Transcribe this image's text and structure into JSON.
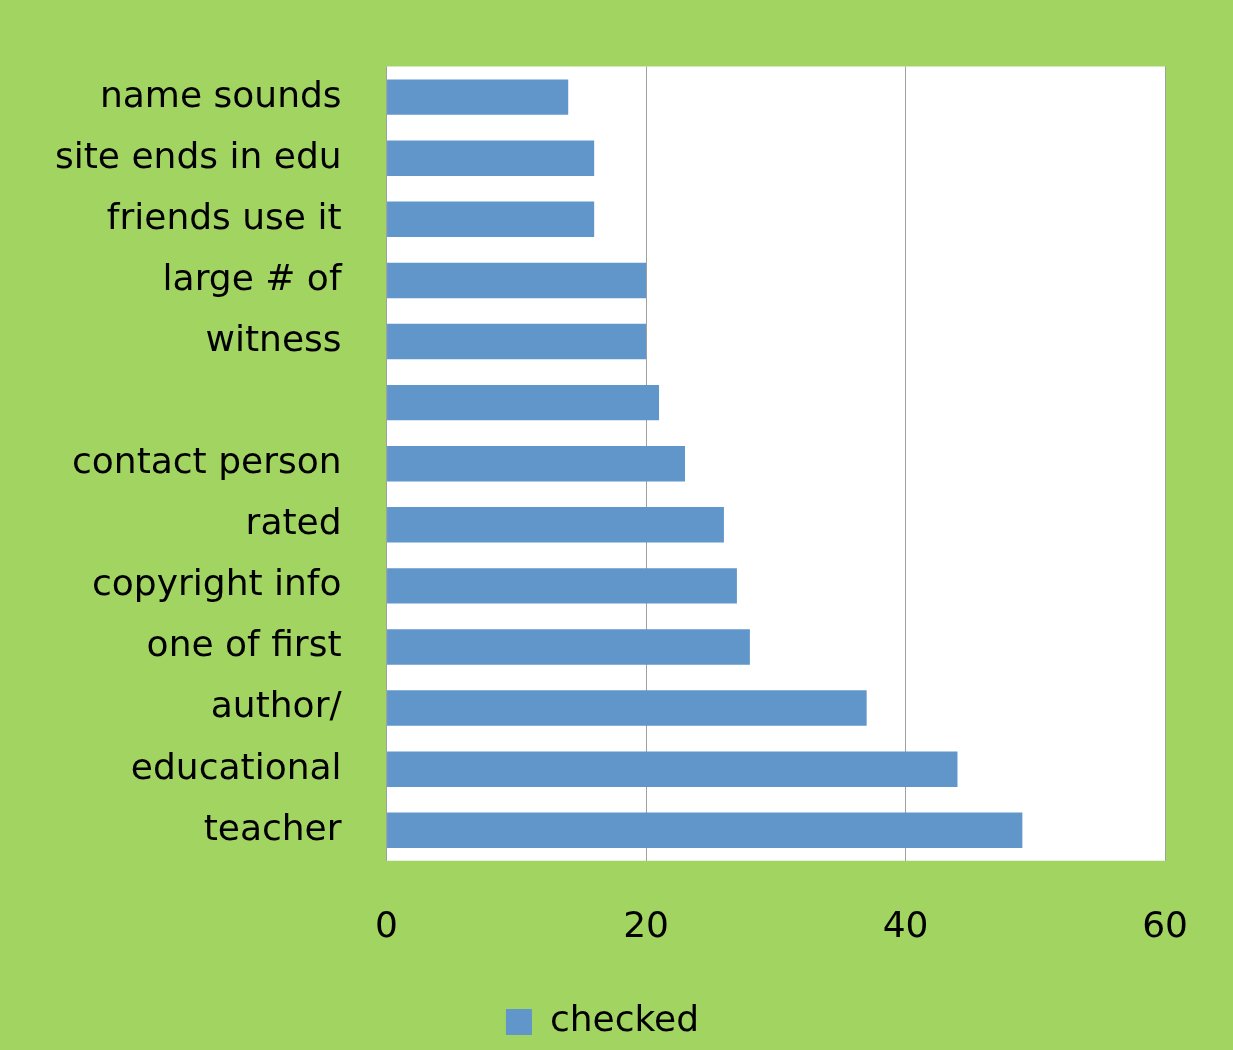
{
  "chart_data": {
    "type": "bar",
    "orientation": "horizontal",
    "categories": [
      "name sounds",
      "site ends in edu",
      "friends use it",
      "large # of",
      "witness",
      null,
      "contact person",
      "rated",
      "copyright info",
      "one of first",
      "author/",
      "educational",
      "teacher"
    ],
    "series": [
      {
        "name": "checked",
        "color": "#6096c9",
        "values": [
          14,
          16,
          16,
          20,
          20,
          21,
          23,
          26,
          27,
          28,
          37,
          44,
          49
        ]
      }
    ],
    "xlim": [
      0,
      60
    ],
    "xticks": [
      0,
      20,
      40,
      60
    ],
    "grid": "x",
    "legend": "bottom"
  }
}
